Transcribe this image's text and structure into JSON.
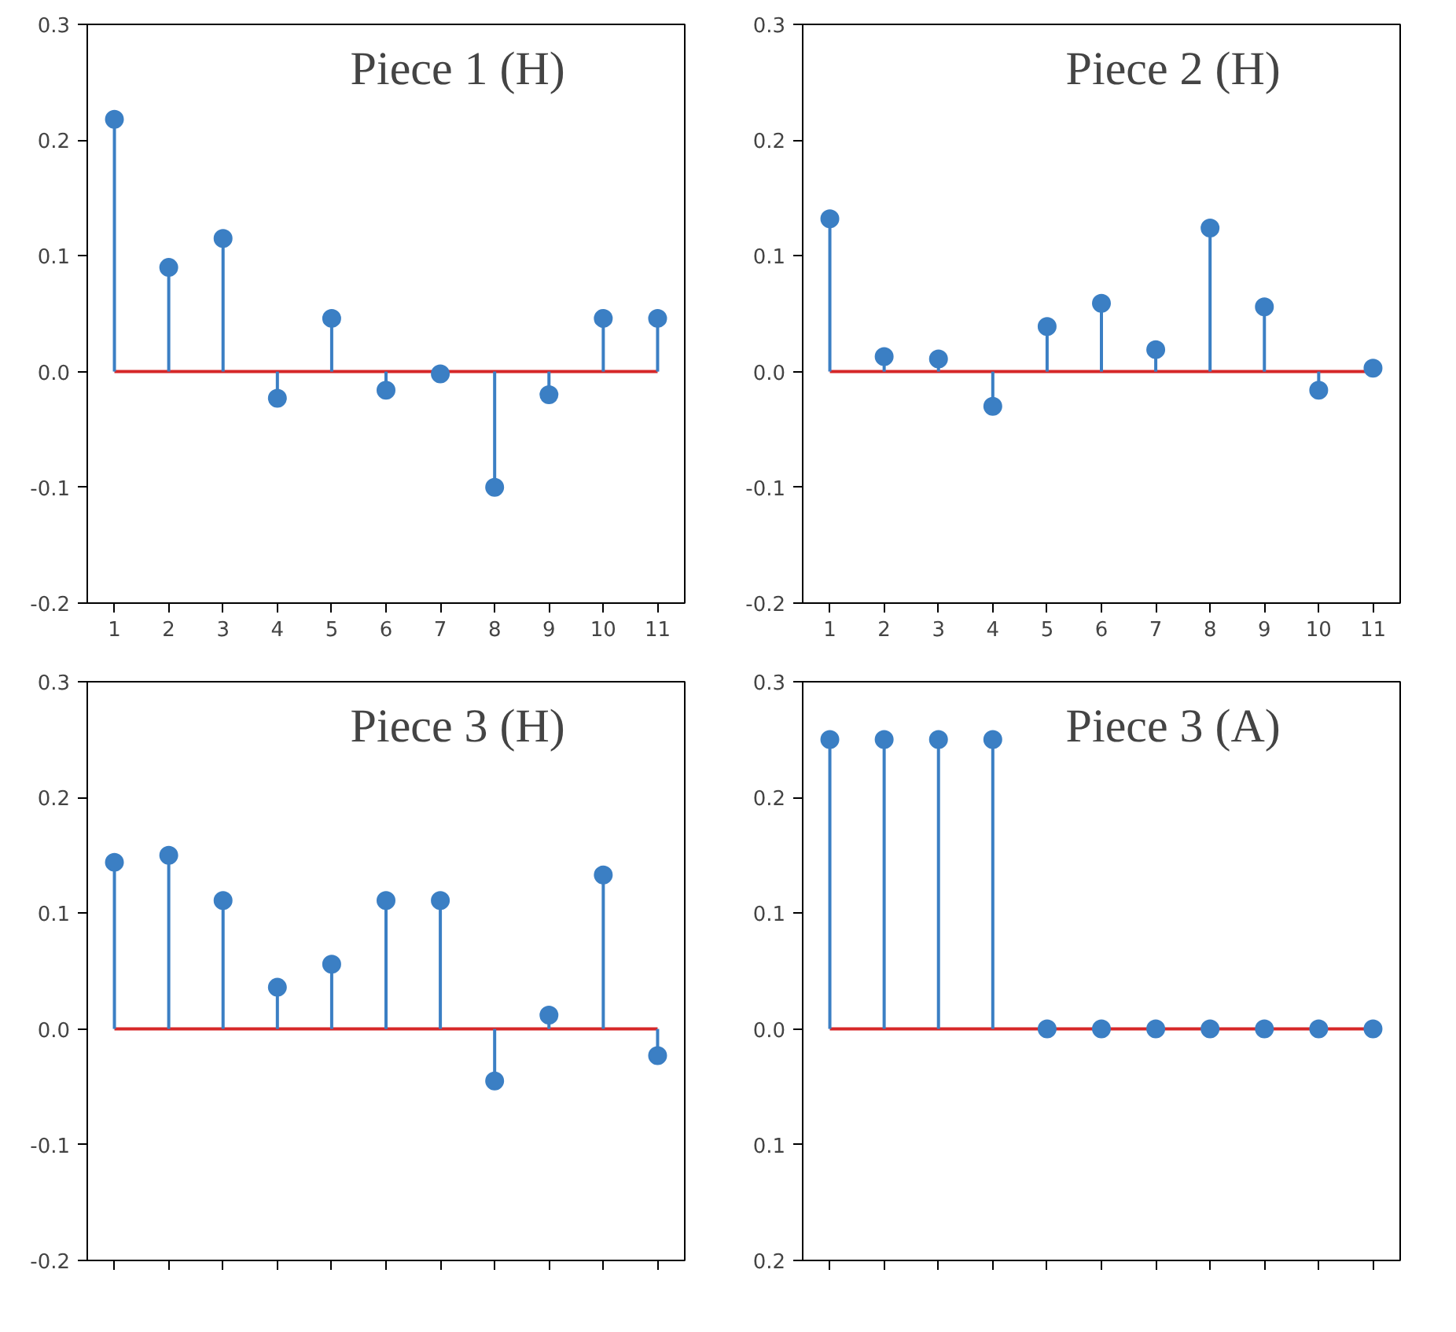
{
  "chart_data": [
    {
      "type": "lollipop",
      "title": "Piece 1 (H)",
      "x": [
        1,
        2,
        3,
        4,
        5,
        6,
        7,
        8,
        9,
        10,
        11
      ],
      "values": [
        0.218,
        0.09,
        0.115,
        -0.023,
        0.046,
        -0.016,
        -0.002,
        -0.1,
        -0.02,
        0.046,
        0.046
      ],
      "color": "#3b7fc4",
      "marker": "circle",
      "xlim": [
        0.5,
        11.5
      ],
      "xticks": [
        1,
        2,
        3,
        4,
        5,
        6,
        7,
        8,
        9,
        10,
        11
      ],
      "ylim": [
        -0.2,
        0.3
      ],
      "yticks": [
        {
          "value": -0.2,
          "label": "-0.2"
        },
        {
          "value": -0.1,
          "label": "-0.1"
        },
        {
          "value": 0,
          "label": "0.0"
        },
        {
          "value": 0.1,
          "label": "0.1"
        },
        {
          "value": 0.2,
          "label": "0.2"
        },
        {
          "value": 0.3,
          "label": "0.3"
        }
      ],
      "ref_lines": [
        {
          "axis": "y",
          "value": 0,
          "color": "#d62728"
        }
      ]
    },
    {
      "type": "lollipop",
      "title": "Piece 2 (H)",
      "x": [
        1,
        2,
        3,
        4,
        5,
        6,
        7,
        8,
        9,
        10,
        11
      ],
      "values": [
        0.132,
        0.013,
        0.011,
        -0.03,
        0.039,
        0.059,
        0.019,
        0.124,
        0.056,
        -0.016,
        0.003
      ],
      "color": "#3b7fc4",
      "marker": "circle",
      "xlim": [
        0.5,
        11.5
      ],
      "xticks": [
        1,
        2,
        3,
        4,
        5,
        6,
        7,
        8,
        9,
        10,
        11
      ],
      "ylim": [
        -0.2,
        0.3
      ],
      "yticks": [
        {
          "value": -0.2,
          "label": "-0.2"
        },
        {
          "value": -0.1,
          "label": "-0.1"
        },
        {
          "value": 0,
          "label": "0.0"
        },
        {
          "value": 0.1,
          "label": "0.1"
        },
        {
          "value": 0.2,
          "label": "0.2"
        },
        {
          "value": 0.3,
          "label": "0.3"
        }
      ],
      "ref_lines": [
        {
          "axis": "y",
          "value": 0,
          "color": "#d62728"
        }
      ]
    },
    {
      "type": "lollipop",
      "title": "Piece 3 (H)",
      "x": [
        1,
        2,
        3,
        4,
        5,
        6,
        7,
        8,
        9,
        10,
        11
      ],
      "values": [
        0.144,
        0.15,
        0.111,
        0.036,
        0.056,
        0.111,
        0.111,
        -0.045,
        0.012,
        0.133,
        -0.023
      ],
      "color": "#3b7fc4",
      "marker": "circle",
      "xlim": [
        0.5,
        11.5
      ],
      "xticks": [
        1,
        2,
        3,
        4,
        5,
        6,
        7,
        8,
        9,
        10,
        11
      ],
      "ylim": [
        -0.2,
        0.3
      ],
      "yticks": [
        {
          "value": -0.2,
          "label": "-0.2"
        },
        {
          "value": -0.1,
          "label": "-0.1"
        },
        {
          "value": 0,
          "label": "0.0"
        },
        {
          "value": 0.1,
          "label": "0.1"
        },
        {
          "value": 0.2,
          "label": "0.2"
        },
        {
          "value": 0.3,
          "label": "0.3"
        }
      ],
      "ref_lines": [
        {
          "axis": "y",
          "value": 0,
          "color": "#d62728"
        }
      ],
      "tick_labels": "y"
    },
    {
      "type": "lollipop",
      "title": "Piece 3 (A)",
      "x": [
        1,
        2,
        3,
        4,
        5,
        6,
        7,
        8,
        9,
        10,
        11
      ],
      "values": [
        0.25,
        0.25,
        0.25,
        0.25,
        0,
        0,
        0,
        0,
        0,
        0,
        0
      ],
      "color": "#3b7fc4",
      "marker": "circle",
      "xlim": [
        0.5,
        11.5
      ],
      "xticks": [
        1,
        2,
        3,
        4,
        5,
        6,
        7,
        8,
        9,
        10,
        11
      ],
      "ylim": [
        -0.2,
        0.3
      ],
      "yticks": [
        {
          "value": -0.2,
          "label": "0.2"
        },
        {
          "value": -0.1,
          "label": "0.1"
        },
        {
          "value": 0,
          "label": "0.0"
        },
        {
          "value": 0.1,
          "label": "0.1"
        },
        {
          "value": 0.2,
          "label": "0.2"
        },
        {
          "value": 0.3,
          "label": "0.3"
        }
      ],
      "ref_lines": [
        {
          "axis": "y",
          "value": 0,
          "color": "#d62728"
        }
      ],
      "tick_labels": "y"
    }
  ]
}
